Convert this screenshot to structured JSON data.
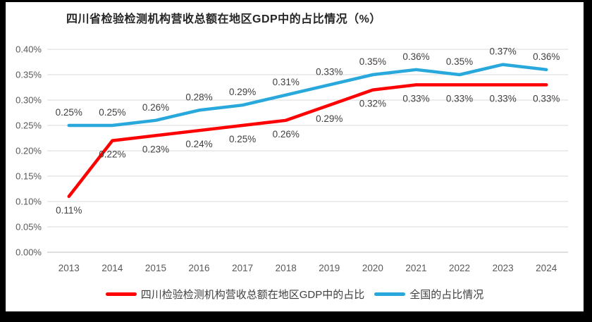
{
  "chart_data": {
    "type": "line",
    "title": "四川省检验检测机构营收总额在地区GDP中的占比情况（%）",
    "categories": [
      "2013",
      "2014",
      "2015",
      "2016",
      "2017",
      "2018",
      "2019",
      "2020",
      "2021",
      "2022",
      "2023",
      "2024"
    ],
    "series": [
      {
        "name": "四川检验检测机构营收总额在地区GDP中的占比",
        "color": "#fe0000",
        "values": [
          0.11,
          0.22,
          0.23,
          0.24,
          0.25,
          0.26,
          0.29,
          0.32,
          0.33,
          0.33,
          0.33,
          0.33
        ],
        "labels": [
          "0.11%",
          "0.22%",
          "0.23%",
          "0.24%",
          "0.25%",
          "0.26%",
          "0.29%",
          "0.32%",
          "0.33%",
          "0.33%",
          "0.33%",
          "0.33%"
        ],
        "label_position": "below"
      },
      {
        "name": "全国的占比情况",
        "color": "#29a8dc",
        "values": [
          0.25,
          0.25,
          0.26,
          0.28,
          0.29,
          0.31,
          0.33,
          0.35,
          0.36,
          0.35,
          0.37,
          0.36
        ],
        "labels": [
          "0.25%",
          "0.25%",
          "0.26%",
          "0.28%",
          "0.29%",
          "0.31%",
          "0.33%",
          "0.35%",
          "0.36%",
          "0.35%",
          "0.37%",
          "0.36%"
        ],
        "label_position": "above"
      }
    ],
    "xlabel": "",
    "ylabel": "",
    "ylim": [
      0,
      0.4
    ],
    "ytick_step": 0.05,
    "ytick_labels": [
      "0.00%",
      "0.05%",
      "0.10%",
      "0.15%",
      "0.20%",
      "0.25%",
      "0.30%",
      "0.35%",
      "0.40%"
    ],
    "grid": true,
    "legend_position": "bottom",
    "colors": {
      "gridline": "#d9d9d9",
      "axis_line": "#bfbfbf",
      "tick_text": "#595959",
      "data_label_text": "#3f3f3f"
    }
  }
}
